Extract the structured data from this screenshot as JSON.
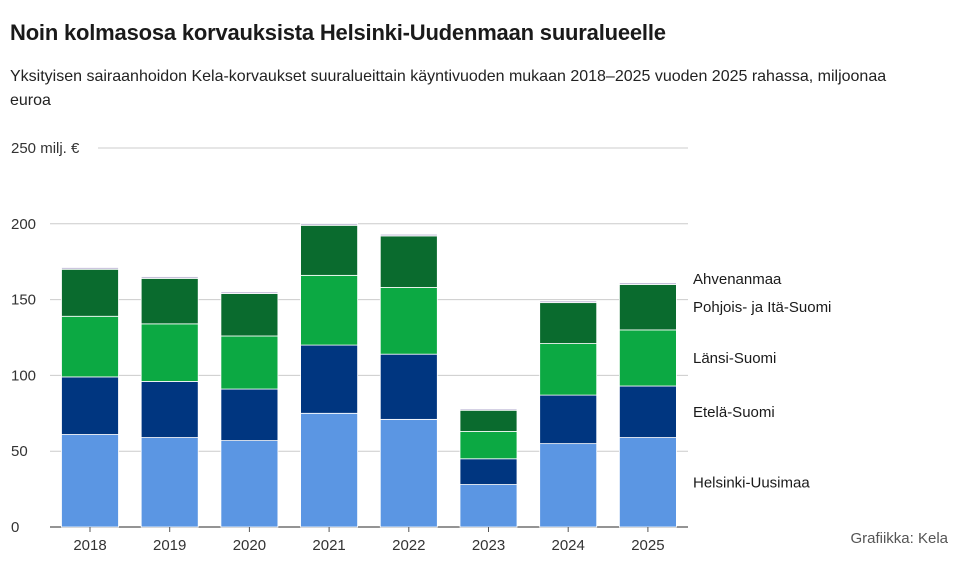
{
  "title": "Noin kolmasosa korvauksista Helsinki-Uudenmaan suuralueelle",
  "subtitle": "Yksityisen sairaanhoidon Kela-korvaukset suuralueittain käyntivuoden mukaan 2018–2025 vuoden 2025 rahassa, miljoonaa euroa",
  "source": "Grafiikka: Kela",
  "chart_data": {
    "type": "bar",
    "stacked": true,
    "categories": [
      "2018",
      "2019",
      "2020",
      "2021",
      "2022",
      "2023",
      "2024",
      "2025"
    ],
    "series": [
      {
        "name": "Helsinki-Uusimaa",
        "color": "#5b96e3",
        "values": [
          61,
          59,
          57,
          75,
          71,
          28,
          55,
          59
        ]
      },
      {
        "name": "Etelä-Suomi",
        "color": "#003680",
        "values": [
          38,
          37,
          34,
          45,
          43,
          17,
          32,
          34
        ]
      },
      {
        "name": "Länsi-Suomi",
        "color": "#0ca943",
        "values": [
          40,
          38,
          35,
          46,
          44,
          18,
          34,
          37
        ]
      },
      {
        "name": "Pohjois- ja Itä-Suomi",
        "color": "#0a6b2e",
        "values": [
          31,
          30,
          28,
          33,
          34,
          14,
          27,
          30
        ]
      },
      {
        "name": "Ahvenanmaa",
        "color": "#c5bfd9",
        "values": [
          1.2,
          1.2,
          1.2,
          1.2,
          1.2,
          1,
          1.2,
          1.2
        ]
      }
    ],
    "ylim": [
      0,
      250
    ],
    "yticks": [
      0,
      50,
      100,
      150,
      200,
      250
    ],
    "ytick_labels": [
      "0",
      "50",
      "100",
      "150",
      "200",
      "250 milj. €"
    ],
    "grid": true,
    "legend": "right, labels beside last bar"
  }
}
